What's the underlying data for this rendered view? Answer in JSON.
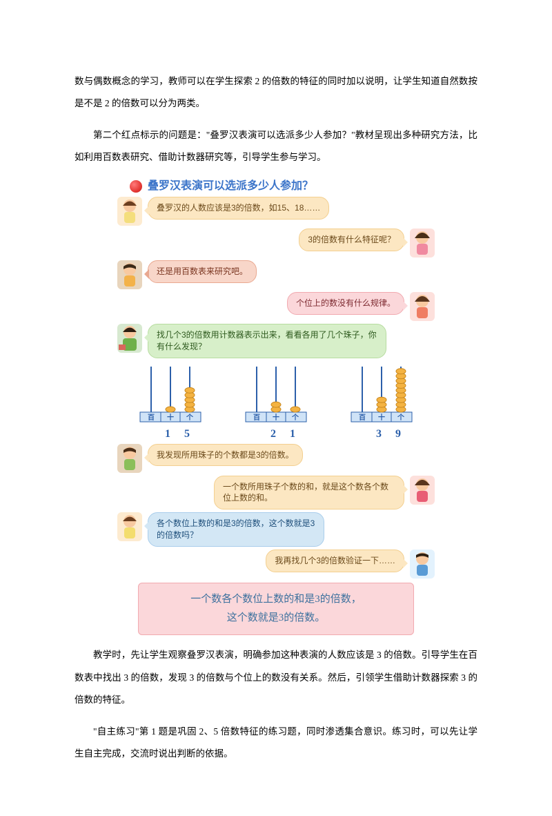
{
  "paragraphs": {
    "p1": "数与偶数概念的学习，教师可以在学生探索 2 的倍数的特征的同时加以说明，让学生知道自然数按是不是 2 的倍数可以分为两类。",
    "p2": "第二个红点标示的问题是：\"叠罗汉表演可以选派多少人参加？\"教材呈现出多种研究方法，比如利用百数表研究、借助计数器研究等，引导学生参与学习。",
    "p3": "教学时，先让学生观察叠罗汉表演，明确参加这种表演的人数应该是 3 的倍数。引导学生在百数表中找出 3 的倍数，发现 3 的倍数与个位上的数没有关系。然后，引领学生借助计数器探索 3 的倍数的特征。",
    "p4": "\"自主练习\"第 1 题是巩固 2、5 倍数特征的练习题，同时渗透集合意识。练习时，可以先让学生自主完成，交流时说出判断的依据。"
  },
  "figure": {
    "title": "叠罗汉表演可以选派多少人参加？",
    "bubbles": {
      "b1": "叠罗汉的人数应该是3的倍数，如15、18……",
      "b2": "3的倍数有什么特征呢？",
      "b3": "还是用百数表来研究吧。",
      "b4": "个位上的数没有什么规律。",
      "b5": "找几个3的倍数用计数器表示出来，看看各用了几个珠子，你有什么发现？",
      "b6": "我发现所用珠子的个数都是3的倍数。",
      "b7": "一个数所用珠子个数的和，就是这个数各个数位上数的和。",
      "b8": "各个数位上数的和是3的倍数，这个数就是3的倍数吗？",
      "b9": "我再找几个3的倍数验证一下……"
    },
    "abaci": [
      {
        "digits": "15",
        "hundreds": 0,
        "tens": 1,
        "ones": 5
      },
      {
        "digits": "21",
        "hundreds": 0,
        "tens": 2,
        "ones": 1
      },
      {
        "digits": "39",
        "hundreds": 0,
        "tens": 3,
        "ones": 9
      }
    ],
    "place_labels": {
      "h": "百",
      "t": "十",
      "o": "个"
    },
    "result": {
      "line1": "一个数各个数位上数的和是3的倍数，",
      "line2": "这个数就是3的倍数。"
    },
    "colors": {
      "title": "#3b74c9",
      "orange_bg": "#fce7c2",
      "red_bg": "#f8d6c9",
      "green_bg": "#d7efc9",
      "pink_bg": "#fbd7da",
      "blue_bg": "#d3e7f5",
      "rod": "#2b5faa",
      "bead": "#f4b342",
      "base": "#cfe3f7"
    }
  }
}
